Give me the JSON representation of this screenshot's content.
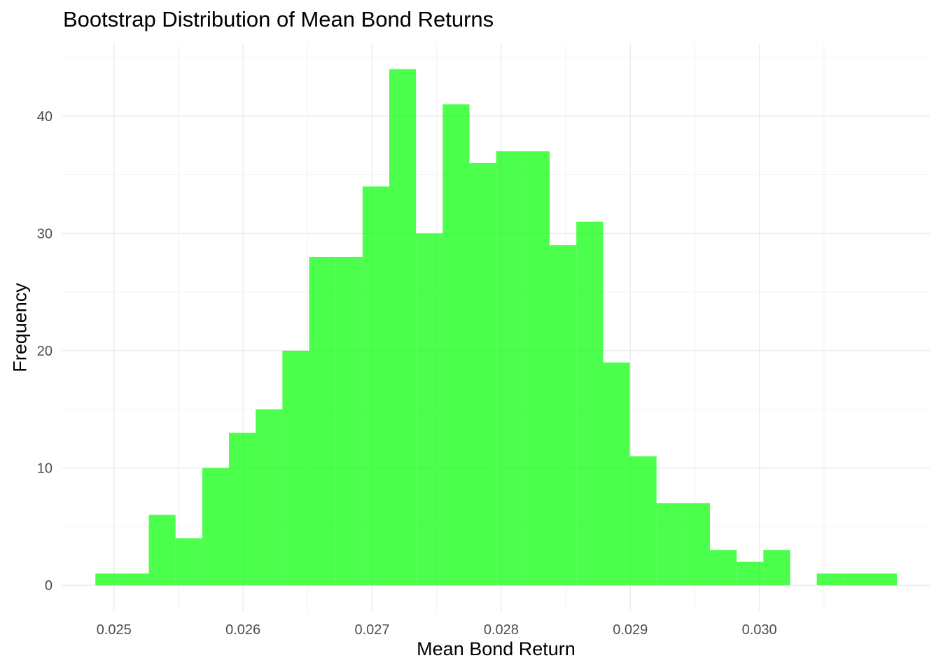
{
  "chart_data": {
    "type": "bar",
    "title": "Bootstrap Distribution of Mean Bond Returns",
    "xlabel": "Mean Bond Return",
    "ylabel": "Frequency",
    "xlim": [
      0.0246,
      0.03132
    ],
    "ylim": [
      -2.2,
      46.2
    ],
    "bin_width": 0.000207,
    "bin_start": 0.024856,
    "counts": [
      1,
      1,
      6,
      4,
      10,
      13,
      15,
      20,
      28,
      28,
      34,
      44,
      30,
      41,
      36,
      37,
      37,
      29,
      31,
      19,
      11,
      7,
      7,
      3,
      2,
      3,
      0,
      1,
      1,
      1
    ],
    "x_ticks": [
      0.025,
      0.026,
      0.027,
      0.028,
      0.029,
      0.03
    ],
    "x_tick_labels": [
      "0.025",
      "0.026",
      "0.027",
      "0.028",
      "0.029",
      "0.030"
    ],
    "y_ticks": [
      0,
      10,
      20,
      30,
      40
    ],
    "y_tick_labels": [
      "0",
      "10",
      "20",
      "30",
      "40"
    ],
    "bar_color": "#00ff00",
    "bar_opacity": 0.7,
    "grid": true,
    "legend": "none"
  }
}
